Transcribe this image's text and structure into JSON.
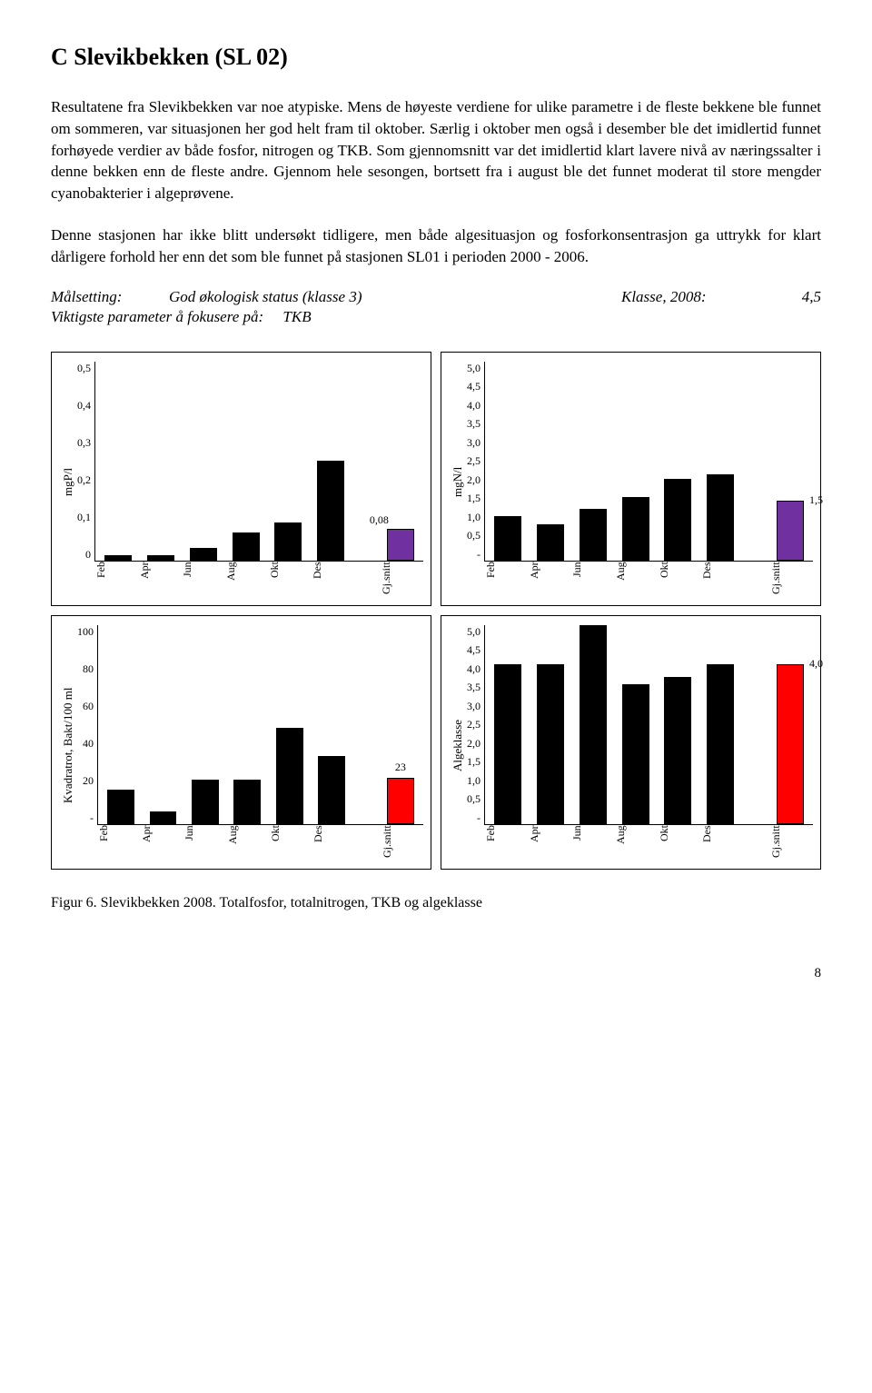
{
  "title": "C    Slevikbekken (SL 02)",
  "paragraph": "Resultatene fra Slevikbekken var noe atypiske. Mens de høyeste verdiene for ulike parametre i de fleste bekkene ble funnet om sommeren, var situasjonen her god helt fram til oktober. Særlig i oktober men også i desember ble det imidlertid funnet forhøyede verdier av både fosfor, nitrogen og TKB. Som gjennomsnitt var det imidlertid klart lavere nivå av næringssalter i denne bekken enn de fleste andre. Gjennom hele sesongen, bortsett fra i august ble det funnet moderat til store mengder cyanobakterier i algeprøvene.",
  "paragraph2": "Denne stasjonen har ikke blitt undersøkt tidligere, men både algesituasjon og fosforkonsentrasjon ga uttrykk for klart dårligere forhold her enn det som ble funnet på stasjonen SL01 i perioden 2000 - 2006.",
  "goal": {
    "label": "Målsetting:",
    "value": "God økologisk status (klasse 3)",
    "klasse_label": "Klasse, 2008:",
    "klasse_value": "4,5"
  },
  "param": {
    "label": "Viktigste parameter å fokusere på:",
    "value": "TKB"
  },
  "months": [
    "Feb",
    "Apr",
    "Jun",
    "Aug",
    "Okt",
    "Des"
  ],
  "avg_label": "Gj.snitt",
  "colors": {
    "black": "#000000",
    "purple": "#7030a0",
    "red": "#ff0000"
  },
  "chart1": {
    "ylabel": "mgP/l",
    "ymax": 0.5,
    "yticks": [
      "0,5",
      "0,4",
      "0,3",
      "0,2",
      "0,1",
      "0"
    ],
    "values": [
      0.013,
      0.013,
      0.03,
      0.07,
      0.095,
      0.25
    ],
    "avg": 0.08,
    "avg_label": "0,08",
    "avg_color": "#7030a0"
  },
  "chart2": {
    "ylabel": "mgN/l",
    "ymax": 5.0,
    "yticks": [
      "5,0",
      "4,5",
      "4,0",
      "3,5",
      "3,0",
      "2,5",
      "2,0",
      "1,5",
      "1,0",
      "0,5",
      "-"
    ],
    "values": [
      1.1,
      0.9,
      1.3,
      1.6,
      2.05,
      2.15
    ],
    "avg": 1.5,
    "avg_label": "1,5",
    "avg_color": "#7030a0"
  },
  "chart3": {
    "ylabel": "Kvadratrot, Bakt/100 ml",
    "ymax": 100,
    "yticks": [
      "100",
      "80",
      "60",
      "40",
      "20",
      "-"
    ],
    "values": [
      17,
      6,
      22,
      22,
      48,
      34
    ],
    "avg": 23,
    "avg_label": "23",
    "avg_color": "#ff0000"
  },
  "chart4": {
    "ylabel": "Algeklasse",
    "ymax": 5.0,
    "yticks": [
      "5,0",
      "4,5",
      "4,0",
      "3,5",
      "3,0",
      "2,5",
      "2,0",
      "1,5",
      "1,0",
      "0,5",
      "-"
    ],
    "values": [
      4.0,
      4.0,
      5.0,
      3.5,
      3.7,
      4.0
    ],
    "avg": 4.0,
    "avg_label": "4,0",
    "avg_color": "#ff0000"
  },
  "caption": "Figur 6. Slevikbekken 2008. Totalfosfor, totalnitrogen, TKB og algeklasse",
  "page_number": "8"
}
